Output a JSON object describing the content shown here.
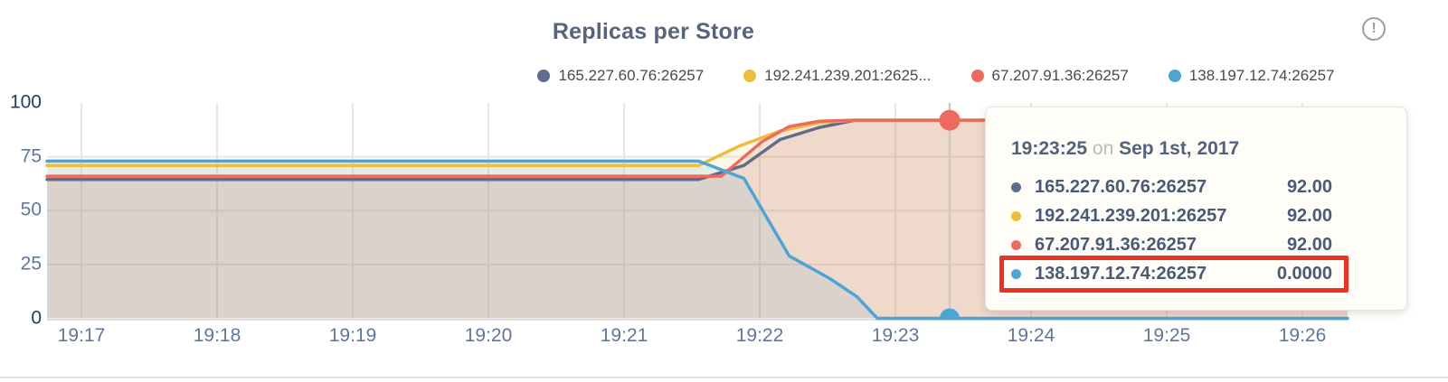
{
  "header": {
    "title": "Replicas per Store",
    "info_icon": "circle-exclamation-icon"
  },
  "legend": {
    "items": [
      {
        "label": "165.227.60.76:26257",
        "color": "#606c8c"
      },
      {
        "label": "192.241.239.201:2625...",
        "color": "#ecbe3c"
      },
      {
        "label": "67.207.91.36:26257",
        "color": "#ee6a5e"
      },
      {
        "label": "138.197.12.74:26257",
        "color": "#4da5d6"
      }
    ]
  },
  "tooltip": {
    "time": "19:23:25",
    "conjunction": "on",
    "date": "Sep 1st, 2017",
    "rows": [
      {
        "label": "165.227.60.76:26257",
        "value": "92.00",
        "color": "#606c8c",
        "highlighted": false
      },
      {
        "label": "192.241.239.201:26257",
        "value": "92.00",
        "color": "#ecbe3c",
        "highlighted": false
      },
      {
        "label": "67.207.91.36:26257",
        "value": "92.00",
        "color": "#ee6a5e",
        "highlighted": false
      },
      {
        "label": "138.197.12.74:26257",
        "value": "0.0000",
        "color": "#4da5d6",
        "highlighted": true
      }
    ],
    "highlight_color": "#ea3323"
  },
  "chart_data": {
    "type": "area",
    "title": "Replicas per Store",
    "ylim": [
      0,
      100
    ],
    "y_ticks": [
      0,
      25,
      50,
      75,
      100
    ],
    "x_ticks": [
      {
        "t": 0,
        "label": "19:17"
      },
      {
        "t": 60,
        "label": "19:18"
      },
      {
        "t": 120,
        "label": "19:19"
      },
      {
        "t": 180,
        "label": "19:20"
      },
      {
        "t": 240,
        "label": "19:21"
      },
      {
        "t": 300,
        "label": "19:22"
      },
      {
        "t": 360,
        "label": "19:23"
      },
      {
        "t": 420,
        "label": "19:24"
      },
      {
        "t": 480,
        "label": "19:25"
      },
      {
        "t": 540,
        "label": "19:26"
      }
    ],
    "grid": true,
    "legend_position": "top",
    "series": [
      {
        "name": "165.227.60.76:26257",
        "color": "#606c8c",
        "fill_opacity": 0.1,
        "points": [
          [
            -15.2,
            64.5
          ],
          [
            273,
            64.5
          ],
          [
            293,
            71
          ],
          [
            309,
            83
          ],
          [
            326,
            88.5
          ],
          [
            342,
            92
          ],
          [
            560,
            92
          ]
        ]
      },
      {
        "name": "192.241.239.201:26257",
        "color": "#ecbe3c",
        "fill_opacity": 0.13,
        "points": [
          [
            -15.2,
            71
          ],
          [
            273,
            71
          ],
          [
            291,
            80
          ],
          [
            309,
            87
          ],
          [
            327,
            91
          ],
          [
            342,
            92
          ],
          [
            560,
            92
          ]
        ]
      },
      {
        "name": "67.207.91.36:26257",
        "color": "#ee6a5e",
        "fill_opacity": 0.13,
        "points": [
          [
            -15.2,
            66
          ],
          [
            283,
            66
          ],
          [
            301,
            82
          ],
          [
            313,
            89
          ],
          [
            326,
            91.5
          ],
          [
            341,
            92
          ],
          [
            560,
            92
          ]
        ]
      },
      {
        "name": "138.197.12.74:26257",
        "color": "#4da5d6",
        "fill_opacity": 0.12,
        "points": [
          [
            -15.2,
            73
          ],
          [
            273,
            73
          ],
          [
            293,
            65
          ],
          [
            313,
            29
          ],
          [
            319,
            25.5
          ],
          [
            331,
            18.5
          ],
          [
            343,
            10
          ],
          [
            352,
            0
          ],
          [
            560,
            0
          ]
        ]
      }
    ],
    "hover": {
      "t": 384,
      "time_label": "19:23:25",
      "crosshair_color": "#c9c9c9",
      "markers": [
        {
          "series": "67.207.91.36:26257",
          "value": 92,
          "color": "#ee6a5e",
          "radius": 11.5
        },
        {
          "series": "138.197.12.74:26257",
          "value": 0,
          "color": "#4da5d6",
          "radius": 11
        }
      ]
    }
  }
}
